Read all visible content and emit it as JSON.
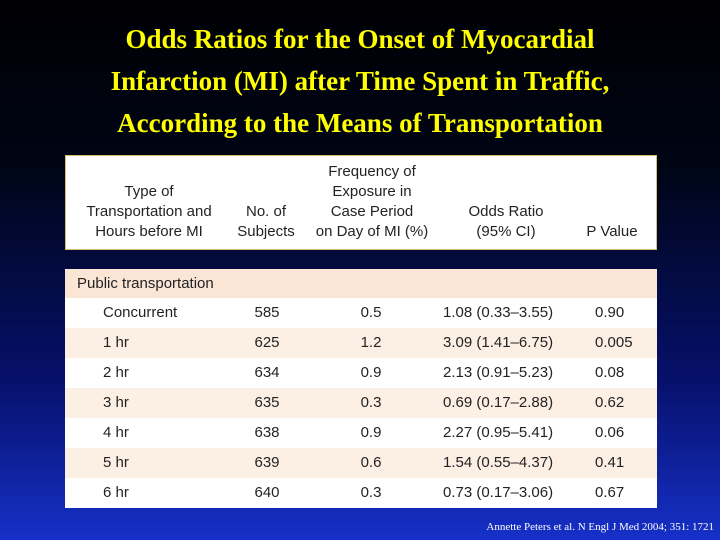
{
  "slide": {
    "title_lines": [
      "Odds Ratios for the Onset of Myocardial",
      "Infarction (MI) after Time Spent in Traffic,",
      "According to the Means of Transportation"
    ],
    "citation": "Annette Peters et al. N Engl J Med 2004; 351: 1721"
  },
  "table": {
    "headers": [
      "Type of\nTransportation and\nHours before MI",
      "No. of\nSubjects",
      "Frequency of\nExposure in\nCase Period\non Day of MI (%)",
      "Odds Ratio\n(95% CI)",
      "P Value"
    ],
    "section": "Public transportation",
    "rows": [
      [
        "Concurrent",
        "585",
        "0.5",
        "1.08 (0.33–3.55)",
        "0.90"
      ],
      [
        "1 hr",
        "625",
        "1.2",
        "3.09 (1.41–6.75)",
        "0.005"
      ],
      [
        "2 hr",
        "634",
        "0.9",
        "2.13 (0.91–5.23)",
        "0.08"
      ],
      [
        "3 hr",
        "635",
        "0.3",
        "0.69 (0.17–2.88)",
        "0.62"
      ],
      [
        "4 hr",
        "638",
        "0.9",
        "2.27 (0.95–5.41)",
        "0.06"
      ],
      [
        "5 hr",
        "639",
        "0.6",
        "1.54 (0.55–4.37)",
        "0.41"
      ],
      [
        "6 hr",
        "640",
        "0.3",
        "0.73 (0.17–3.06)",
        "0.67"
      ]
    ]
  },
  "colors": {
    "title": "#ffff00",
    "section_band": "#fbe6d6",
    "stripe_band": "#fcefe4",
    "header_border": "#d8c070"
  }
}
